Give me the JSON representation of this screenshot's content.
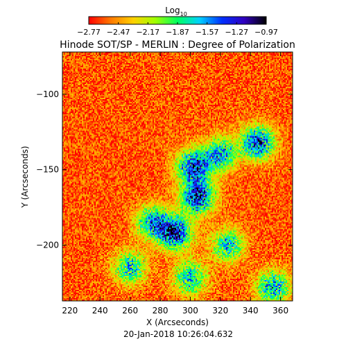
{
  "chart_data": {
    "type": "heatmap",
    "title": "Hinode SOT/SP - MERLIN : Degree of Polarization",
    "colorbar": {
      "label_main": "Log",
      "label_sub": "10",
      "ticks": [
        "-2.77",
        "-2.47",
        "-2.17",
        "-1.87",
        "-1.57",
        "-1.27",
        "-0.97"
      ],
      "range": [
        -2.77,
        -0.97
      ],
      "colormap": [
        "#ff0000",
        "#ff7a00",
        "#ffd000",
        "#a0ff00",
        "#00ff60",
        "#00d0ff",
        "#0030ff",
        "#3000c0",
        "#000000"
      ]
    },
    "xlabel": "X (Arcseconds)",
    "ylabel": "Y (Arcseconds)",
    "xlim": [
      215,
      368
    ],
    "ylim": [
      -237,
      -72
    ],
    "xticks": [
      220,
      240,
      260,
      280,
      300,
      320,
      340,
      360
    ],
    "yticks": [
      -100,
      -150,
      -200
    ],
    "timestamp": "20-Jan-2018 10:26:04.632",
    "background_level": -2.6,
    "active_regions": [
      {
        "x": 302,
        "y": -148,
        "level": -1.35
      },
      {
        "x": 305,
        "y": -168,
        "level": -1.3
      },
      {
        "x": 290,
        "y": -192,
        "level": -1.3
      },
      {
        "x": 275,
        "y": -185,
        "level": -1.6
      },
      {
        "x": 345,
        "y": -132,
        "level": -1.35
      },
      {
        "x": 320,
        "y": -140,
        "level": -1.6
      },
      {
        "x": 325,
        "y": -200,
        "level": -1.7
      },
      {
        "x": 260,
        "y": -215,
        "level": -1.7
      },
      {
        "x": 300,
        "y": -222,
        "level": -1.7
      },
      {
        "x": 355,
        "y": -228,
        "level": -1.6
      }
    ]
  }
}
